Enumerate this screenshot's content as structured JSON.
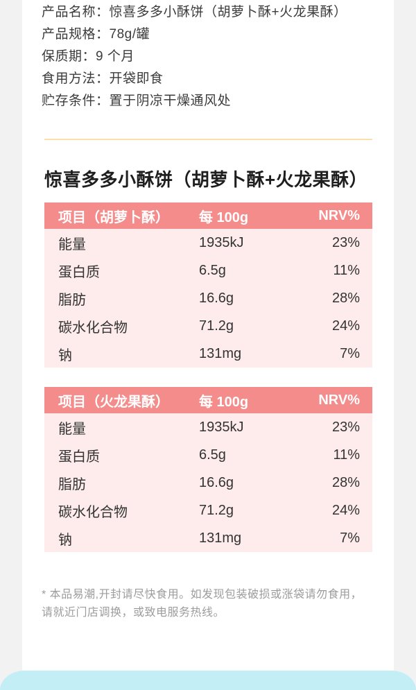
{
  "product_info": {
    "lines": [
      "产品名称：惊喜多多小酥饼（胡萝卜酥+火龙果酥）",
      "产品规格：78g/罐",
      "保质期：9 个月",
      "食用方法：开袋即食",
      "贮存条件：置于阴凉干燥通风处"
    ]
  },
  "section_title": "惊喜多多小酥饼（胡萝卜酥+火龙果酥）",
  "tables": [
    {
      "headers": {
        "item": "项目（胡萝卜酥）",
        "per": "每 100g",
        "nrv": "NRV%"
      },
      "rows": [
        {
          "name": "能量",
          "value": "1935kJ",
          "nrv": "23%"
        },
        {
          "name": "蛋白质",
          "value": "6.5g",
          "nrv": "11%"
        },
        {
          "name": "脂肪",
          "value": "16.6g",
          "nrv": "28%"
        },
        {
          "name": "碳水化合物",
          "value": "71.2g",
          "nrv": "24%"
        },
        {
          "name": "钠",
          "value": "131mg",
          "nrv": "7%"
        }
      ]
    },
    {
      "headers": {
        "item": "项目（火龙果酥）",
        "per": "每 100g",
        "nrv": "NRV%"
      },
      "rows": [
        {
          "name": "能量",
          "value": "1935kJ",
          "nrv": "23%"
        },
        {
          "name": "蛋白质",
          "value": "6.5g",
          "nrv": "11%"
        },
        {
          "name": "脂肪",
          "value": "16.6g",
          "nrv": "28%"
        },
        {
          "name": "碳水化合物",
          "value": "71.2g",
          "nrv": "24%"
        },
        {
          "name": "钠",
          "value": "131mg",
          "nrv": "7%"
        }
      ]
    }
  ],
  "footnote": {
    "lines": [
      "* 本品易潮,开封请尽快食用。如发现包装破损或涨袋请勿食用，",
      "请就近门店调换，或致电服务热线。"
    ]
  },
  "colors": {
    "page_background": "#f2f2f2",
    "table_header_background": "#f48c8c",
    "table_body_background": "#fdeceb",
    "divider": "#fbdfad",
    "bottom_bar": "#c4eef6"
  }
}
